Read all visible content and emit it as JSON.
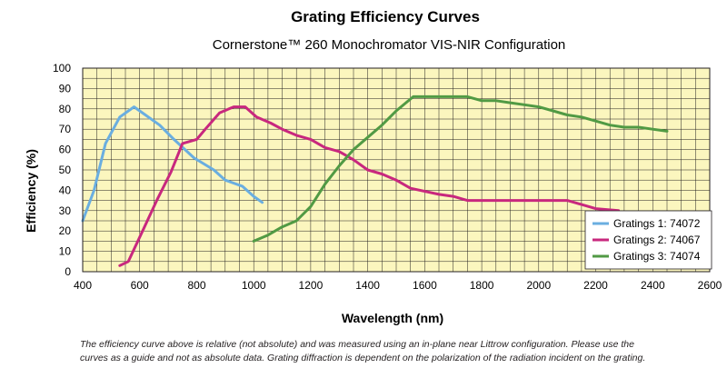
{
  "chart_data": {
    "type": "line",
    "title": "Grating Efficiency Curves",
    "subtitle": "Cornerstone™ 260 Monochromator VIS-NIR Configuration",
    "xlabel": "Wavelength (nm)",
    "ylabel": "Efficiency (%)",
    "xlim": [
      400,
      2600
    ],
    "ylim": [
      0,
      100
    ],
    "xticks": [
      400,
      600,
      800,
      1000,
      1200,
      1400,
      1600,
      1800,
      2000,
      2200,
      2400,
      2600
    ],
    "yticks": [
      0,
      10,
      20,
      30,
      40,
      50,
      60,
      70,
      80,
      90,
      100
    ],
    "grid": true,
    "legend_position": "bottom-right",
    "series": [
      {
        "name": "Gratings 1: 74072",
        "color": "#6aaee0",
        "points": [
          [
            400,
            25
          ],
          [
            440,
            40
          ],
          [
            480,
            63
          ],
          [
            530,
            76
          ],
          [
            580,
            81
          ],
          [
            620,
            77
          ],
          [
            670,
            72
          ],
          [
            720,
            65
          ],
          [
            790,
            56
          ],
          [
            860,
            50
          ],
          [
            900,
            45
          ],
          [
            960,
            42
          ],
          [
            1000,
            37
          ],
          [
            1030,
            34
          ]
        ]
      },
      {
        "name": "Gratings 2: 74067",
        "color": "#c8287e",
        "points": [
          [
            530,
            3
          ],
          [
            560,
            5
          ],
          [
            610,
            20
          ],
          [
            660,
            35
          ],
          [
            710,
            49
          ],
          [
            750,
            63
          ],
          [
            800,
            65
          ],
          [
            830,
            70
          ],
          [
            880,
            78
          ],
          [
            930,
            81
          ],
          [
            970,
            81
          ],
          [
            1010,
            76
          ],
          [
            1060,
            73
          ],
          [
            1100,
            70
          ],
          [
            1150,
            67
          ],
          [
            1200,
            65
          ],
          [
            1250,
            61
          ],
          [
            1300,
            59
          ],
          [
            1350,
            55
          ],
          [
            1400,
            50
          ],
          [
            1450,
            48
          ],
          [
            1500,
            45
          ],
          [
            1550,
            41
          ],
          [
            1650,
            38
          ],
          [
            1700,
            37
          ],
          [
            1750,
            35
          ],
          [
            1850,
            35
          ],
          [
            2000,
            35
          ],
          [
            2100,
            35
          ],
          [
            2150,
            33
          ],
          [
            2200,
            31
          ],
          [
            2280,
            30
          ]
        ]
      },
      {
        "name": "Gratings 3: 74074",
        "color": "#519a44",
        "points": [
          [
            1000,
            15
          ],
          [
            1050,
            18
          ],
          [
            1100,
            22
          ],
          [
            1150,
            25
          ],
          [
            1200,
            32
          ],
          [
            1250,
            43
          ],
          [
            1300,
            52
          ],
          [
            1350,
            60
          ],
          [
            1400,
            66
          ],
          [
            1450,
            72
          ],
          [
            1500,
            79
          ],
          [
            1560,
            86
          ],
          [
            1650,
            86
          ],
          [
            1750,
            86
          ],
          [
            1800,
            84
          ],
          [
            1850,
            84
          ],
          [
            1900,
            83
          ],
          [
            1950,
            82
          ],
          [
            2000,
            81
          ],
          [
            2050,
            79
          ],
          [
            2100,
            77
          ],
          [
            2150,
            76
          ],
          [
            2200,
            74
          ],
          [
            2250,
            72
          ],
          [
            2300,
            71
          ],
          [
            2350,
            71
          ],
          [
            2400,
            70
          ],
          [
            2450,
            69
          ]
        ]
      }
    ],
    "footnote_lines": [
      "The efficiency curve above is relative (not absolute) and was measured using an in-plane near Littrow configuration.  Please use the",
      "curves as a guide and not as absolute data.  Grating diffraction is dependent on the polarization of the radiation incident on the grating."
    ]
  }
}
